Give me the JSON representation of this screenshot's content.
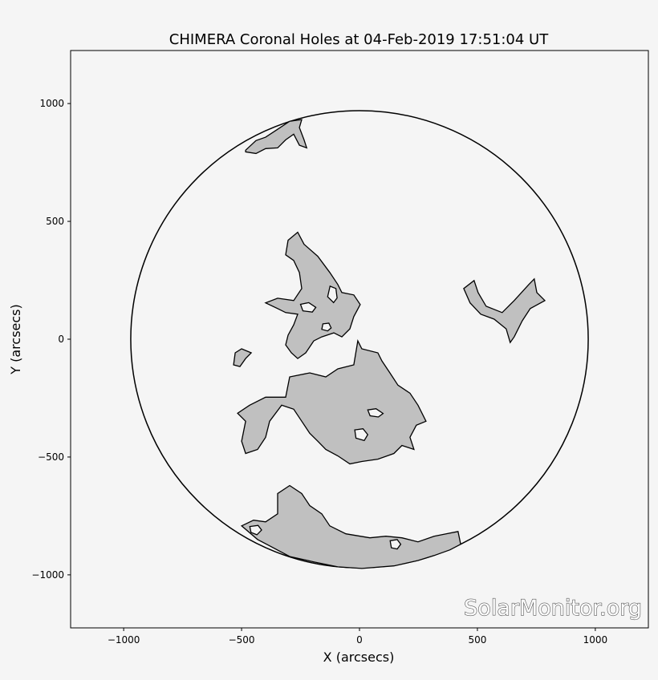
{
  "chart_data": {
    "type": "contour",
    "title": "CHIMERA Coronal Holes at 04-Feb-2019 17:51:04 UT",
    "x_label": "X (arcsecs)",
    "y_label": "Y (arcsecs)",
    "watermark": "SolarMonitor.org",
    "xlim": [
      -1225,
      1225
    ],
    "ylim": [
      -1225,
      1225
    ],
    "xticks": [
      {
        "value": -1000,
        "label": "−1000"
      },
      {
        "value": -500,
        "label": "−500"
      },
      0,
      500,
      1000
    ],
    "yticks": [
      {
        "value": -1000,
        "label": "−1000"
      },
      {
        "value": -500,
        "label": "−500"
      },
      0,
      500,
      1000
    ],
    "limb_radius": 970,
    "fill_color": "#c0c0c0",
    "regions": [
      {
        "x": [
          -483,
          -439,
          -398,
          -347,
          -296,
          -245,
          -255,
          -235,
          -224,
          -255,
          -279,
          -313,
          -347,
          -398,
          -439,
          -483
        ],
        "y": [
          802,
          843,
          857,
          891,
          925,
          932,
          898,
          846,
          812,
          823,
          870,
          846,
          812,
          809,
          788,
          795
        ]
      },
      {
        "x": [
          -303,
          -262,
          -235,
          -177,
          -126,
          -92,
          -75,
          -24,
          3,
          -24,
          -41,
          -75,
          -109,
          -160,
          -194,
          -228,
          -262,
          -289,
          -313,
          -303,
          -279,
          -262,
          -313,
          -347,
          -398,
          -347,
          -279,
          -245,
          -255,
          -279,
          -313
        ],
        "y": [
          420,
          454,
          403,
          352,
          283,
          232,
          198,
          188,
          147,
          96,
          44,
          10,
          27,
          10,
          -7,
          -58,
          -82,
          -58,
          -24,
          17,
          61,
          106,
          113,
          130,
          154,
          174,
          164,
          215,
          283,
          334,
          358
        ]
      },
      {
        "x": [
          -534,
          -527,
          -500,
          -459,
          -483,
          -507
        ],
        "y": [
          -109,
          -58,
          -41,
          -58,
          -82,
          -116
        ]
      },
      {
        "x": [
          -7,
          10,
          78,
          95,
          129,
          163,
          214,
          248,
          282,
          241,
          214,
          231,
          180,
          146,
          78,
          10,
          -41,
          -92,
          -143,
          -177,
          -211,
          -245,
          -279,
          -330,
          -381,
          -398,
          -432,
          -483,
          -500,
          -483,
          -517,
          -466,
          -398,
          -313,
          -296,
          -211,
          -143,
          -92,
          -24
        ],
        "y": [
          -7,
          -41,
          -58,
          -92,
          -143,
          -195,
          -229,
          -280,
          -348,
          -365,
          -416,
          -468,
          -451,
          -485,
          -509,
          -519,
          -529,
          -495,
          -468,
          -433,
          -399,
          -348,
          -297,
          -280,
          -348,
          -416,
          -468,
          -485,
          -433,
          -348,
          -314,
          -280,
          -246,
          -246,
          -160,
          -143,
          -160,
          -126,
          -109
        ]
      },
      {
        "x": [
          442,
          486,
          503,
          537,
          605,
          656,
          718,
          741,
          752,
          786,
          724,
          690,
          656,
          639,
          622,
          571,
          514,
          469
        ],
        "y": [
          215,
          249,
          198,
          140,
          113,
          164,
          232,
          256,
          198,
          164,
          130,
          78,
          10,
          -14,
          44,
          85,
          106,
          154
        ]
      },
      {
        "x": [
          -500,
          -449,
          -398,
          -347,
          -347,
          -296,
          -245,
          -211,
          -160,
          -126,
          -58,
          44,
          112,
          180,
          248,
          316,
          367,
          418,
          429,
          384,
          316,
          248,
          146,
          10,
          -92,
          -194,
          -296,
          -381,
          -432
        ],
        "y": [
          -792,
          -768,
          -775,
          -741,
          -655,
          -621,
          -655,
          -706,
          -741,
          -792,
          -826,
          -843,
          -836,
          -843,
          -860,
          -836,
          -826,
          -816,
          -870,
          -894,
          -918,
          -939,
          -962,
          -973,
          -966,
          -945,
          -922,
          -877,
          -850
        ]
      }
    ],
    "holes": [
      {
        "x": [
          -125,
          -100,
          -95,
          -110,
          -135
        ],
        "y": [
          225,
          215,
          175,
          155,
          180
        ]
      },
      {
        "x": [
          -250,
          -215,
          -185,
          -200,
          -240
        ],
        "y": [
          148,
          155,
          135,
          115,
          120
        ]
      },
      {
        "x": [
          -155,
          -130,
          -120,
          -135,
          -160
        ],
        "y": [
          65,
          68,
          48,
          35,
          42
        ]
      },
      {
        "x": [
          35,
          70,
          100,
          80,
          45
        ],
        "y": [
          -300,
          -295,
          -315,
          -330,
          -325
        ]
      },
      {
        "x": [
          -20,
          15,
          35,
          20,
          -15
        ],
        "y": [
          -385,
          -380,
          -405,
          -430,
          -420
        ]
      },
      {
        "x": [
          130,
          160,
          175,
          160,
          135
        ],
        "y": [
          -855,
          -850,
          -870,
          -890,
          -885
        ]
      },
      {
        "x": [
          -465,
          -430,
          -415,
          -435,
          -460
        ],
        "y": [
          -795,
          -790,
          -810,
          -830,
          -820
        ]
      }
    ]
  }
}
